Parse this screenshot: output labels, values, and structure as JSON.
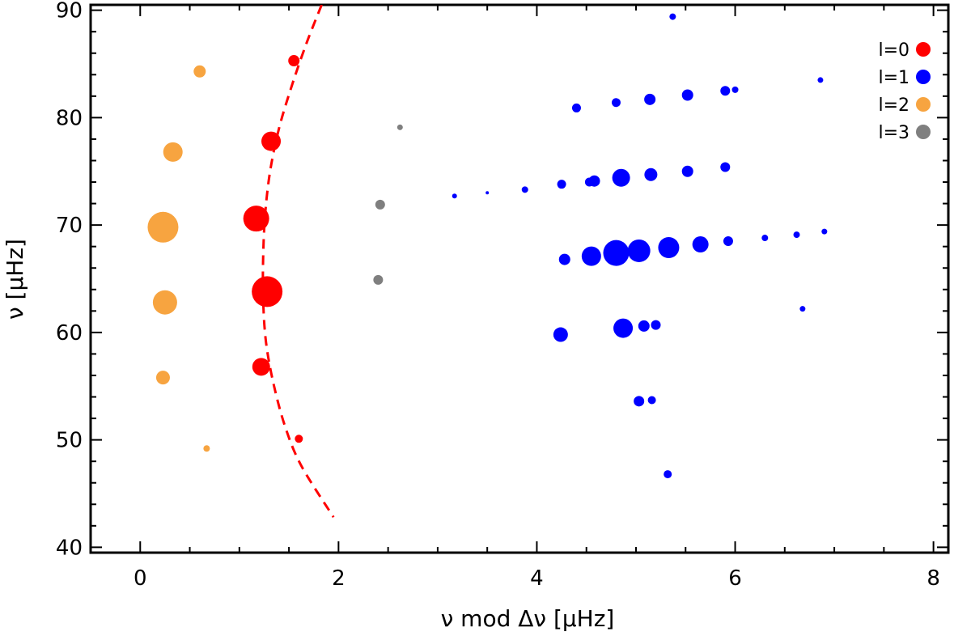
{
  "chart_data": {
    "type": "scatter",
    "title": "",
    "xlabel": "ν mod Δν [μHz]",
    "ylabel": "ν [μHz]",
    "xlim": [
      -0.5,
      8.15
    ],
    "ylim": [
      39.5,
      90.5
    ],
    "xticks": [
      0,
      2,
      4,
      6,
      8
    ],
    "yticks": [
      40,
      50,
      60,
      70,
      80,
      90
    ],
    "x_tick_labels": [
      "0",
      "2",
      "4",
      "6",
      "8"
    ],
    "y_tick_labels": [
      "40",
      "50",
      "60",
      "70",
      "80",
      "90"
    ],
    "grid": false,
    "legend_position": "top-right",
    "series": [
      {
        "name": "l=0",
        "color": "#ff0000",
        "points": [
          {
            "x": 1.55,
            "y": 85.3,
            "size": 7
          },
          {
            "x": 1.32,
            "y": 77.8,
            "size": 12
          },
          {
            "x": 1.17,
            "y": 70.6,
            "size": 16
          },
          {
            "x": 1.28,
            "y": 63.8,
            "size": 19
          },
          {
            "x": 1.22,
            "y": 56.8,
            "size": 11
          },
          {
            "x": 1.6,
            "y": 50.1,
            "size": 5
          }
        ]
      },
      {
        "name": "l=1",
        "color": "#0000ff",
        "points": [
          {
            "x": 5.37,
            "y": 89.4,
            "size": 4
          },
          {
            "x": 6.86,
            "y": 83.5,
            "size": 3.5
          },
          {
            "x": 5.9,
            "y": 82.5,
            "size": 6
          },
          {
            "x": 6.0,
            "y": 82.6,
            "size": 4
          },
          {
            "x": 5.52,
            "y": 82.1,
            "size": 7
          },
          {
            "x": 5.14,
            "y": 81.7,
            "size": 7
          },
          {
            "x": 4.8,
            "y": 81.4,
            "size": 5.5
          },
          {
            "x": 4.4,
            "y": 80.9,
            "size": 5.5
          },
          {
            "x": 5.9,
            "y": 75.4,
            "size": 6
          },
          {
            "x": 5.52,
            "y": 75.0,
            "size": 7
          },
          {
            "x": 5.15,
            "y": 74.7,
            "size": 8
          },
          {
            "x": 4.85,
            "y": 74.4,
            "size": 11
          },
          {
            "x": 4.58,
            "y": 74.1,
            "size": 7
          },
          {
            "x": 4.53,
            "y": 74.0,
            "size": 5.5
          },
          {
            "x": 4.25,
            "y": 73.8,
            "size": 5.5
          },
          {
            "x": 3.88,
            "y": 73.3,
            "size": 4
          },
          {
            "x": 3.5,
            "y": 73.0,
            "size": 2
          },
          {
            "x": 3.17,
            "y": 72.7,
            "size": 3
          },
          {
            "x": 6.9,
            "y": 69.4,
            "size": 3.5
          },
          {
            "x": 6.62,
            "y": 69.1,
            "size": 4
          },
          {
            "x": 6.3,
            "y": 68.8,
            "size": 4
          },
          {
            "x": 5.93,
            "y": 68.5,
            "size": 6
          },
          {
            "x": 5.65,
            "y": 68.2,
            "size": 10
          },
          {
            "x": 5.33,
            "y": 67.9,
            "size": 13
          },
          {
            "x": 5.03,
            "y": 67.6,
            "size": 14
          },
          {
            "x": 4.8,
            "y": 67.4,
            "size": 16
          },
          {
            "x": 4.55,
            "y": 67.1,
            "size": 12
          },
          {
            "x": 4.28,
            "y": 66.8,
            "size": 7
          },
          {
            "x": 6.68,
            "y": 62.2,
            "size": 3.5
          },
          {
            "x": 5.2,
            "y": 60.7,
            "size": 6
          },
          {
            "x": 5.08,
            "y": 60.6,
            "size": 7
          },
          {
            "x": 4.87,
            "y": 60.4,
            "size": 12
          },
          {
            "x": 4.24,
            "y": 59.8,
            "size": 9
          },
          {
            "x": 5.16,
            "y": 53.7,
            "size": 5
          },
          {
            "x": 5.03,
            "y": 53.6,
            "size": 6.5
          },
          {
            "x": 5.32,
            "y": 46.8,
            "size": 5
          }
        ]
      },
      {
        "name": "l=2",
        "color": "#f7a440",
        "points": [
          {
            "x": 0.6,
            "y": 84.3,
            "size": 7.5
          },
          {
            "x": 0.33,
            "y": 76.8,
            "size": 12
          },
          {
            "x": 0.23,
            "y": 69.8,
            "size": 19
          },
          {
            "x": 0.25,
            "y": 62.8,
            "size": 15
          },
          {
            "x": 0.23,
            "y": 55.8,
            "size": 8.5
          },
          {
            "x": 0.67,
            "y": 49.2,
            "size": 4
          }
        ]
      },
      {
        "name": "l=3",
        "color": "#7f7f7f",
        "points": [
          {
            "x": 2.62,
            "y": 79.1,
            "size": 3.5
          },
          {
            "x": 2.42,
            "y": 71.9,
            "size": 6
          },
          {
            "x": 2.4,
            "y": 64.9,
            "size": 6
          }
        ]
      }
    ],
    "fit_curve": {
      "style": "dashed",
      "color": "#ff0000",
      "points": [
        {
          "x": 1.83,
          "y": 90.5
        },
        {
          "x": 1.68,
          "y": 87.0
        },
        {
          "x": 1.53,
          "y": 83.0
        },
        {
          "x": 1.4,
          "y": 79.0
        },
        {
          "x": 1.31,
          "y": 75.0
        },
        {
          "x": 1.26,
          "y": 71.0
        },
        {
          "x": 1.24,
          "y": 67.0
        },
        {
          "x": 1.24,
          "y": 63.0
        },
        {
          "x": 1.27,
          "y": 59.0
        },
        {
          "x": 1.35,
          "y": 55.0
        },
        {
          "x": 1.47,
          "y": 51.0
        },
        {
          "x": 1.63,
          "y": 47.5
        },
        {
          "x": 1.95,
          "y": 42.8
        }
      ]
    }
  }
}
